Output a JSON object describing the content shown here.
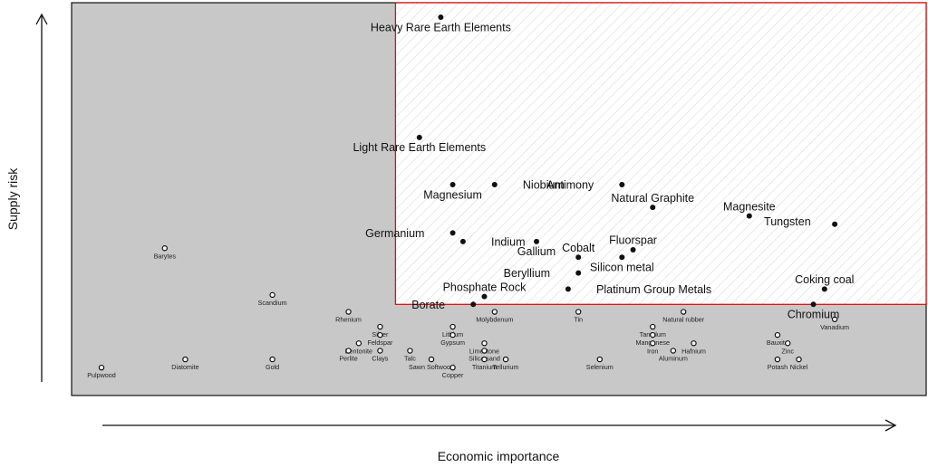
{
  "chart_data": {
    "type": "scatter",
    "xlabel": "Economic importance",
    "ylabel": "Supply risk",
    "xlim": [
      0,
      100
    ],
    "ylim": [
      0,
      100
    ],
    "grid": false,
    "critical_region": {
      "x_min": 37.9,
      "y_min": 23.2
    },
    "colors": {
      "background": "#c8c8c8",
      "critical_fill": "#ffffff",
      "critical_border": "#dd1111",
      "marker": "#111111"
    },
    "critical": [
      {
        "name": "Heavy Rare Earth Elements",
        "x": 43.2,
        "y": 96.3,
        "lx": 43.2,
        "ly": 93.8
      },
      {
        "name": "Light Rare Earth Elements",
        "x": 40.7,
        "y": 65.7,
        "lx": 40.7,
        "ly": 63.2
      },
      {
        "name": "Magnesium",
        "x": 44.6,
        "y": 53.7,
        "lx": 44.6,
        "ly": 51.2
      },
      {
        "name": "Niobium",
        "x": 49.5,
        "y": 53.7,
        "lx": 52.8,
        "ly": 53.7
      },
      {
        "name": "Antimony",
        "x": 64.4,
        "y": 53.7,
        "lx": 61.1,
        "ly": 53.7
      },
      {
        "name": "Natural Graphite",
        "x": 68.0,
        "y": 47.9,
        "lx": 68.0,
        "ly": 50.4
      },
      {
        "name": "Magnesite",
        "x": 79.3,
        "y": 45.7,
        "lx": 79.3,
        "ly": 48.2
      },
      {
        "name": "Tungsten",
        "x": 89.3,
        "y": 43.6,
        "lx": 86.5,
        "ly": 44.3
      },
      {
        "name": "Germanium",
        "x": 44.6,
        "y": 41.4,
        "lx": 41.3,
        "ly": 41.4
      },
      {
        "name": "Indium",
        "x": 45.8,
        "y": 39.2,
        "lx": 49.1,
        "ly": 39.2
      },
      {
        "name": "Gallium",
        "x": 54.4,
        "y": 39.2,
        "lx": 54.4,
        "ly": 36.7
      },
      {
        "name": "Fluorspar",
        "x": 65.7,
        "y": 37.1,
        "lx": 65.7,
        "ly": 39.6
      },
      {
        "name": "Cobalt",
        "x": 59.3,
        "y": 35.2,
        "lx": 59.3,
        "ly": 37.7
      },
      {
        "name": "Silicon metal",
        "x": 64.4,
        "y": 35.2,
        "lx": 64.4,
        "ly": 32.7
      },
      {
        "name": "Beryllium",
        "x": 59.3,
        "y": 31.2,
        "lx": 56.0,
        "ly": 31.2
      },
      {
        "name": "Coking coal",
        "x": 88.1,
        "y": 27.1,
        "lx": 88.1,
        "ly": 29.6
      },
      {
        "name": "Phosphate Rock",
        "x": 48.3,
        "y": 25.2,
        "lx": 48.3,
        "ly": 27.7
      },
      {
        "name": "Platinum Group Metals",
        "x": 58.1,
        "y": 27.1,
        "lx": 61.4,
        "ly": 27.1
      },
      {
        "name": "Borate",
        "x": 47.0,
        "y": 23.2,
        "lx": 43.7,
        "ly": 23.2
      },
      {
        "name": "Chromium",
        "x": 86.8,
        "y": 23.2,
        "lx": 86.8,
        "ly": 20.7
      }
    ],
    "non_critical": [
      {
        "name": "Barytes",
        "x": 10.9,
        "y": 37.5
      },
      {
        "name": "Scandium",
        "x": 23.5,
        "y": 25.6
      },
      {
        "name": "Rhenium",
        "x": 32.4,
        "y": 21.3
      },
      {
        "name": "Molybdenum",
        "x": 49.5,
        "y": 21.3
      },
      {
        "name": "Tin",
        "x": 59.3,
        "y": 21.3
      },
      {
        "name": "Natural rubber",
        "x": 71.6,
        "y": 21.3
      },
      {
        "name": "Vanadium",
        "x": 89.3,
        "y": 19.4
      },
      {
        "name": "Silver",
        "x": 36.1,
        "y": 17.5
      },
      {
        "name": "Lithium",
        "x": 44.6,
        "y": 17.5
      },
      {
        "name": "Tantalum",
        "x": 68.0,
        "y": 17.5
      },
      {
        "name": "Gypsum",
        "x": 44.6,
        "y": 15.4
      },
      {
        "name": "Feldspar",
        "x": 36.1,
        "y": 15.4
      },
      {
        "name": "Bauxite",
        "x": 82.6,
        "y": 15.4
      },
      {
        "name": "Manganese",
        "x": 68.0,
        "y": 15.4
      },
      {
        "name": "Bentonite",
        "x": 33.6,
        "y": 13.3
      },
      {
        "name": "Limestone",
        "x": 48.3,
        "y": 13.3
      },
      {
        "name": "Iron",
        "x": 68.0,
        "y": 13.3
      },
      {
        "name": "Hafnium",
        "x": 72.8,
        "y": 13.3
      },
      {
        "name": "Zinc",
        "x": 83.8,
        "y": 13.3
      },
      {
        "name": "Clays",
        "x": 36.1,
        "y": 11.4
      },
      {
        "name": "Talc",
        "x": 39.6,
        "y": 11.4
      },
      {
        "name": "Silica sand",
        "x": 48.3,
        "y": 11.4
      },
      {
        "name": "Aluminum",
        "x": 70.4,
        "y": 11.4
      },
      {
        "name": "Perlite",
        "x": 32.4,
        "y": 11.4
      },
      {
        "name": "Diatomite",
        "x": 13.3,
        "y": 9.2
      },
      {
        "name": "Gold",
        "x": 23.5,
        "y": 9.2
      },
      {
        "name": "Sawn Softwood",
        "x": 42.1,
        "y": 9.2
      },
      {
        "name": "Titanium",
        "x": 48.3,
        "y": 9.2
      },
      {
        "name": "Tellurium",
        "x": 50.8,
        "y": 9.2
      },
      {
        "name": "Selenium",
        "x": 61.8,
        "y": 9.2
      },
      {
        "name": "Potash",
        "x": 82.6,
        "y": 9.2
      },
      {
        "name": "Nickel",
        "x": 85.1,
        "y": 9.2
      },
      {
        "name": "Copper",
        "x": 44.6,
        "y": 7.1
      },
      {
        "name": "Pulpwood",
        "x": 3.5,
        "y": 7.1
      }
    ]
  }
}
